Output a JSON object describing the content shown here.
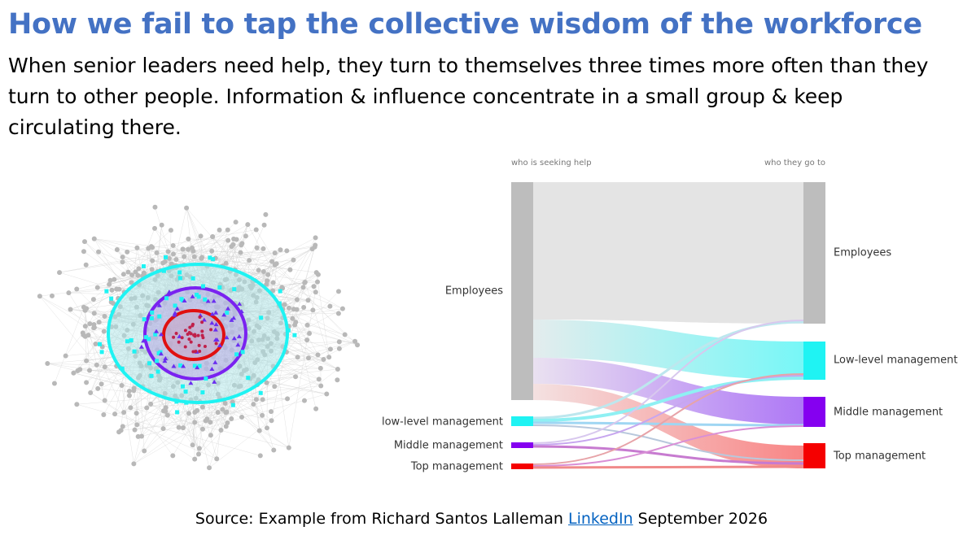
{
  "header": {
    "title": "How we fail to tap the collective wisdom of the workforce",
    "subtitle": "When senior leaders need help, they turn to themselves three times more often than they turn to other people. Information & influence concentrate in a small group & keep circulating there."
  },
  "sankey": {
    "left_header": "who is seeking help",
    "right_header": "who they go to",
    "left_nodes": [
      "Employees",
      "low-level management",
      "Middle management",
      "Top management"
    ],
    "right_nodes": [
      "Employees",
      "Low-level management",
      "Middle management",
      "Top management"
    ]
  },
  "source": {
    "prefix": "Source: Example from Richard Santos Lalleman",
    "link": "LinkedIn",
    "suffix": "September 2026"
  }
}
